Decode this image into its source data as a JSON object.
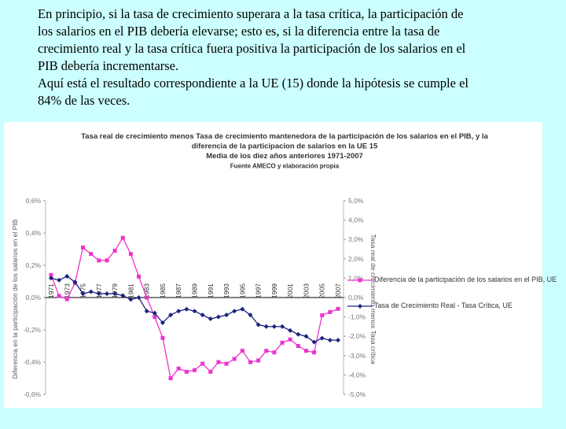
{
  "slide_text": [
    "En principio, si la tasa de crecimiento superara a la tasa crítica, la participación de",
    "los salarios en el PIB debería elevarse; esto es, si la diferencia entre la tasa de",
    "crecimiento real y la tasa crítica fuera positiva la participación de los salarios en el",
    "PIB debería incrementarse.",
    "Aquí está el resultado correspondiente a la UE (15) donde la hipótesis se cumple el",
    "84% de las veces."
  ],
  "chart_data": {
    "type": "line",
    "title": [
      "Tasa real de crecimiento menos Tasa de crecimiento mantenedora de la participación de los salarios en el PIB, y la",
      "diferencia de la participacion de salarios en la UE 15",
      "Media de los diez años anteriores 1971-2007",
      "Fuente AMECO y elaboración propia"
    ],
    "y_label": "Diferencia en la participación de los salarios en el PIB",
    "y2_label": "Tasa real de crecimiento menos Tasa crítica",
    "categories": [
      "1971",
      null,
      "1973",
      null,
      "1975",
      null,
      "1977",
      null,
      "1979",
      null,
      "1981",
      null,
      "1983",
      null,
      "1985",
      null,
      "1987",
      null,
      "1989",
      null,
      "1991",
      null,
      "1993",
      null,
      "1995",
      null,
      "1997",
      null,
      "1999",
      null,
      "2001",
      null,
      "2003",
      null,
      "2005",
      null,
      "2007"
    ],
    "ylim": [
      -0.6,
      0.6
    ],
    "yticks": [
      {
        "value": -0.6,
        "label": "-0,6%"
      },
      {
        "value": -0.4,
        "label": "-0,4%"
      },
      {
        "value": -0.2,
        "label": "-0,2%"
      },
      {
        "value": 0,
        "label": "0,0%"
      },
      {
        "value": 0.2,
        "label": "0,2%"
      },
      {
        "value": 0.4,
        "label": "0,4%"
      },
      {
        "value": 0.6,
        "label": "0,6%"
      }
    ],
    "y2lim": [
      -5,
      5
    ],
    "y2ticks": [
      {
        "value": -5,
        "label": "-5,0%"
      },
      {
        "value": -4,
        "label": "-4,0%"
      },
      {
        "value": -3,
        "label": "-3,0%"
      },
      {
        "value": -2,
        "label": "-2,0%"
      },
      {
        "value": -1,
        "label": "-1,0%"
      },
      {
        "value": 0,
        "label": "0,0%"
      },
      {
        "value": 1,
        "label": "1,0%"
      },
      {
        "value": 2,
        "label": "2,0%"
      },
      {
        "value": 3,
        "label": "3,0%"
      },
      {
        "value": 4,
        "label": "4,0%"
      },
      {
        "value": 5,
        "label": "5,0%"
      }
    ],
    "series": [
      {
        "name": "Diferencia de la participación de los salarios en el PIB, UE",
        "color": "#ee33cc",
        "marker": "square",
        "values": [
          0.14,
          0.01,
          -0.01,
          0.09,
          0.31,
          0.27,
          0.23,
          0.23,
          0.29,
          0.37,
          0.27,
          0.13,
          0.0,
          -0.12,
          -0.25,
          -0.5,
          -0.44,
          -0.46,
          -0.45,
          -0.41,
          -0.46,
          -0.4,
          -0.41,
          -0.38,
          -0.33,
          -0.4,
          -0.39,
          -0.33,
          -0.34,
          -0.28,
          -0.26,
          -0.3,
          -0.33,
          -0.34,
          -0.11,
          -0.09,
          -0.07
        ]
      },
      {
        "name": "Tasa de Crecimiento Real - Tasa Crítica, UE",
        "color": "#1a237e",
        "marker": "diamond",
        "axis": "y2",
        "values": [
          1.0,
          0.9,
          1.1,
          0.8,
          0.2,
          0.3,
          0.2,
          0.2,
          0.2,
          0.1,
          -0.1,
          0.0,
          -0.7,
          -0.8,
          -1.3,
          -0.9,
          -0.7,
          -0.6,
          -0.7,
          -0.9,
          -1.1,
          -1.0,
          -0.9,
          -0.7,
          -0.6,
          -0.9,
          -1.4,
          -1.5,
          -1.5,
          -1.5,
          -1.7,
          -1.9,
          -2.0,
          -2.3,
          -2.1,
          -2.2,
          -2.2
        ]
      }
    ]
  }
}
